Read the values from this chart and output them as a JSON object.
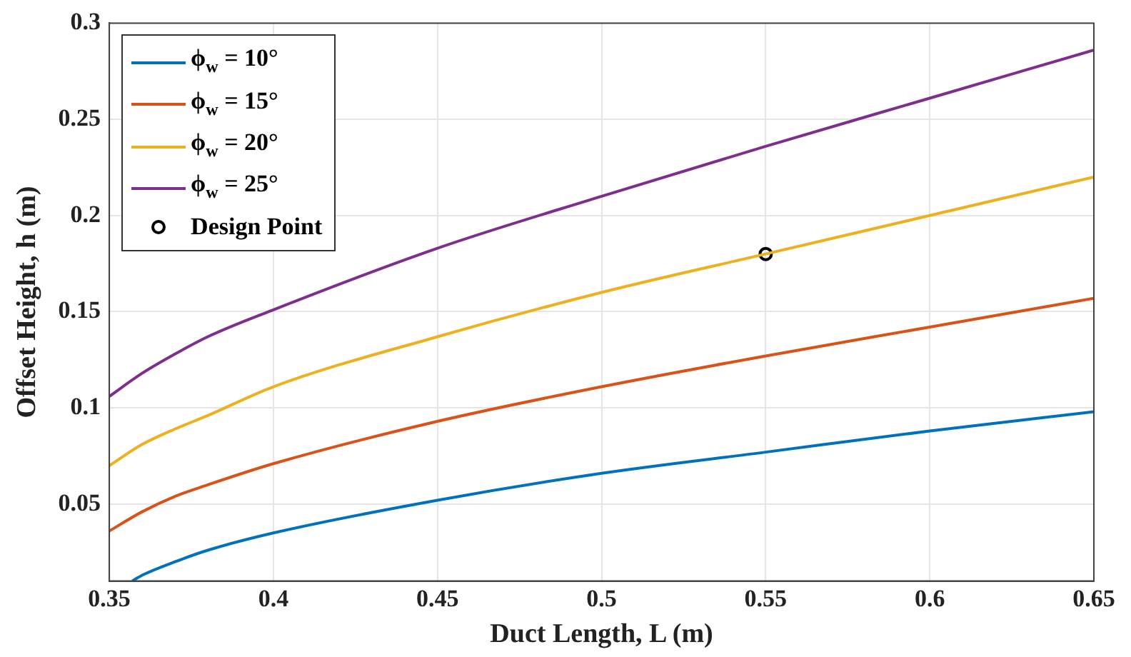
{
  "chart_data": {
    "type": "line",
    "xlabel": "Duct Length, L (m)",
    "ylabel": "Offset Height, h (m)",
    "xlim": [
      0.35,
      0.65
    ],
    "xticks": [
      0.35,
      0.4,
      0.45,
      0.5,
      0.55,
      0.6,
      0.65
    ],
    "ylim": [
      0.01,
      0.3
    ],
    "yticks": [
      0.05,
      0.1,
      0.15,
      0.2,
      0.25,
      0.3
    ],
    "grid": true,
    "legend": "top left",
    "marker": "none",
    "line_style": "solid",
    "series": [
      {
        "name": "ϕ$_{w}$ = 10°",
        "color": "#0072bd",
        "x": [
          0.357,
          0.36,
          0.37,
          0.38,
          0.4,
          0.45,
          0.5,
          0.55,
          0.6,
          0.65
        ],
        "values": [
          0.01,
          0.013,
          0.02,
          0.026,
          0.035,
          0.052,
          0.066,
          0.077,
          0.088,
          0.098
        ]
      },
      {
        "name": "ϕ$_{w}$ = 15°",
        "color": "#d95319",
        "x": [
          0.35,
          0.36,
          0.37,
          0.38,
          0.4,
          0.45,
          0.5,
          0.55,
          0.6,
          0.65
        ],
        "values": [
          0.036,
          0.046,
          0.054,
          0.06,
          0.071,
          0.093,
          0.111,
          0.127,
          0.142,
          0.157
        ]
      },
      {
        "name": "ϕ$_{w}$ = 20°",
        "color": "#edb120",
        "x": [
          0.35,
          0.36,
          0.37,
          0.38,
          0.4,
          0.45,
          0.5,
          0.55,
          0.6,
          0.65
        ],
        "values": [
          0.07,
          0.081,
          0.089,
          0.096,
          0.111,
          0.137,
          0.16,
          0.18,
          0.2,
          0.22
        ]
      },
      {
        "name": "ϕ$_{w}$ = 25°",
        "color": "#7e2f8e",
        "x": [
          0.35,
          0.36,
          0.37,
          0.38,
          0.4,
          0.45,
          0.5,
          0.55,
          0.6,
          0.65
        ],
        "values": [
          0.106,
          0.118,
          0.128,
          0.137,
          0.151,
          0.183,
          0.21,
          0.236,
          0.261,
          0.286
        ]
      },
      {
        "name": "Design Point",
        "type": "scatter",
        "marker": "circle",
        "color": "#000000",
        "x": [
          0.55
        ],
        "values": [
          0.18
        ]
      }
    ]
  }
}
